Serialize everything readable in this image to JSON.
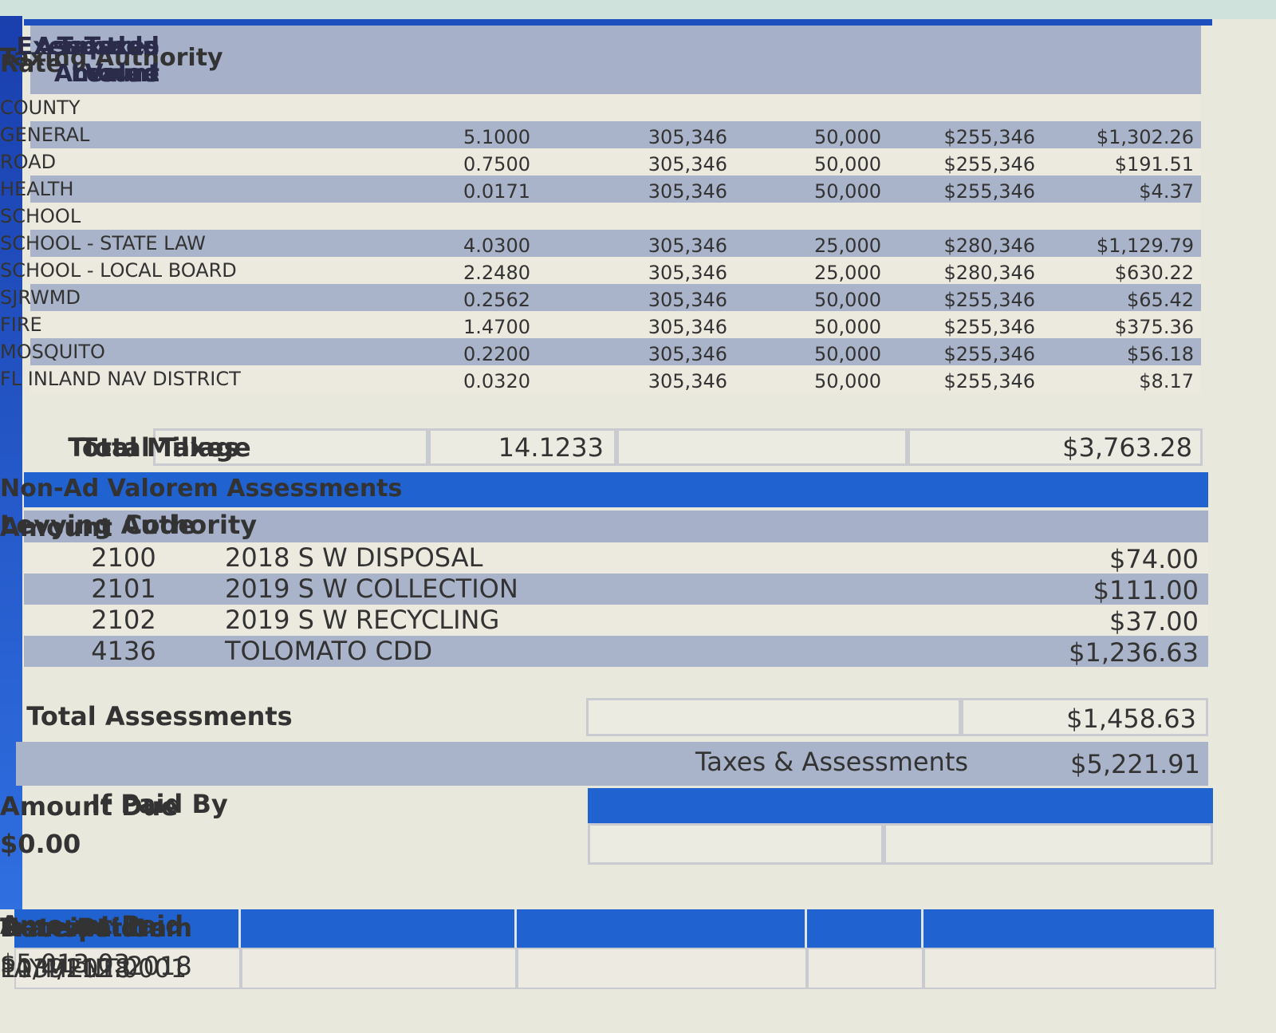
{
  "ad_valorem": {
    "headers": [
      "Taxing Authority",
      "Rate",
      "Assessed Value",
      "Exemption Amount",
      "Taxable Value",
      "Taxes Levied"
    ],
    "rows": [
      [
        "COUNTY"
      ],
      [
        "GENERAL",
        "5.1000",
        "305,346",
        "50,000",
        "$255,346",
        "$1,302.26"
      ],
      [
        "ROAD",
        "0.7500",
        "305,346",
        "50,000",
        "$255,346",
        "$191.51"
      ],
      [
        "HEALTH",
        "0.0171",
        "305,346",
        "50,000",
        "$255,346",
        "$4.37"
      ],
      [
        "SCHOOL"
      ],
      [
        "SCHOOL - STATE LAW",
        "4.0300",
        "305,346",
        "25,000",
        "$280,346",
        "$1,129.79"
      ],
      [
        "SCHOOL - LOCAL BOARD",
        "2.2480",
        "305,346",
        "25,000",
        "$280,346",
        "$630.22"
      ],
      [
        "SJRWMD",
        "0.2562",
        "305,346",
        "50,000",
        "$255,346",
        "$65.42"
      ],
      [
        "FIRE",
        "1.4700",
        "305,346",
        "50,000",
        "$255,346",
        "$375.36"
      ],
      [
        "MOSQUITO",
        "0.2200",
        "305,346",
        "50,000",
        "$255,346",
        "$56.18"
      ],
      [
        "FL INLAND NAV DISTRICT",
        "0.0320",
        "305,346",
        "50,000",
        "$255,346",
        "$8.17"
      ]
    ]
  },
  "totals": {
    "millage_label": "Total Millage",
    "millage": "14.1233",
    "taxes_label": "Total Taxes",
    "taxes": "$3,763.28"
  },
  "non_ad_valorem": {
    "title": "Non-Ad Valorem Assessments",
    "headers": [
      "Code",
      "Levying Authority",
      "Amount"
    ],
    "rows": [
      [
        "2100",
        "2018 S W DISPOSAL",
        "$74.00"
      ],
      [
        "2101",
        "2019 S W COLLECTION",
        "$111.00"
      ],
      [
        "2102",
        "2019 S W RECYCLING",
        "$37.00"
      ],
      [
        "4136",
        "TOLOMATO CDD",
        "$1,236.63"
      ]
    ]
  },
  "total_assessments": {
    "label": "Total Assessments",
    "value": "$1,458.63"
  },
  "combined": {
    "label": "Taxes & Assessments",
    "value": "$5,221.91"
  },
  "due": {
    "headers": [
      "If Paid By",
      "Amount Due"
    ],
    "amount": "$0.00"
  },
  "payments": {
    "headers": [
      "Date Paid",
      "Transaction",
      "Receipt",
      "Item",
      "Amount Paid"
    ],
    "rows": [
      [
        "11/4/2018",
        "PAYMENT",
        "1039112.0001",
        "2018",
        "$5,013.03"
      ]
    ]
  }
}
